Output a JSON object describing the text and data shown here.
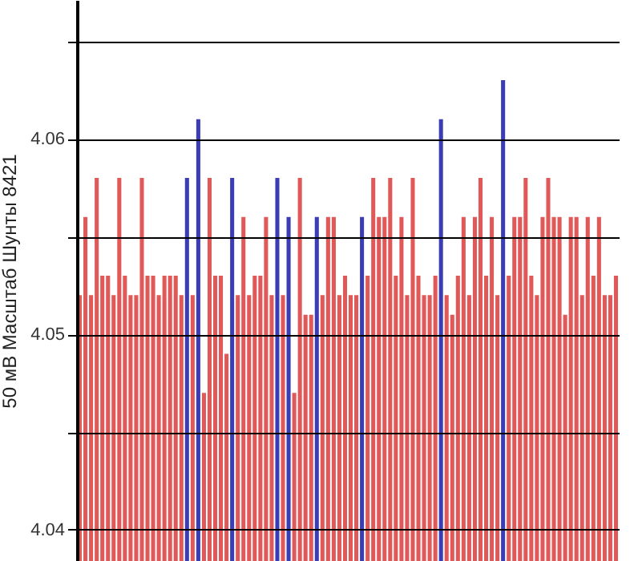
{
  "chart_data": {
    "type": "bar",
    "ylabel": "50 мВ Масштаб  Шунты 8421",
    "categories": [
      null,
      null,
      null,
      null,
      null,
      null,
      null,
      null,
      null,
      null,
      null,
      null,
      null,
      null,
      null,
      null,
      null,
      null,
      null,
      null,
      null,
      null,
      null,
      null,
      null,
      null,
      null,
      null,
      null,
      null,
      null,
      null,
      null,
      null,
      null,
      null,
      null,
      null,
      null,
      null,
      null,
      null,
      null,
      null,
      null,
      null,
      null,
      null,
      null,
      null,
      null,
      null,
      null,
      null,
      null,
      null,
      null,
      null,
      null,
      null,
      null,
      null,
      null,
      null,
      null,
      null,
      null,
      null,
      null,
      null,
      null,
      null,
      null,
      null,
      null,
      null,
      null,
      null,
      null,
      null,
      null,
      null,
      null,
      null,
      null,
      null,
      null,
      null,
      null,
      null,
      null,
      null,
      null,
      null,
      null,
      null
    ],
    "values": [
      4.052,
      4.056,
      4.052,
      4.058,
      4.053,
      4.053,
      4.052,
      4.058,
      4.053,
      4.052,
      4.052,
      4.058,
      4.053,
      4.053,
      4.052,
      4.053,
      4.053,
      4.053,
      4.052,
      4.058,
      4.052,
      4.061,
      4.047,
      4.058,
      4.053,
      4.053,
      4.049,
      4.058,
      4.052,
      4.056,
      4.052,
      4.053,
      4.053,
      4.056,
      4.052,
      4.058,
      4.052,
      4.056,
      4.047,
      4.058,
      4.051,
      4.051,
      4.056,
      4.052,
      4.056,
      4.056,
      4.052,
      4.053,
      4.052,
      4.052,
      4.056,
      4.053,
      4.058,
      4.056,
      4.056,
      4.058,
      4.053,
      4.056,
      4.052,
      4.058,
      4.053,
      4.052,
      4.052,
      4.053,
      4.061,
      4.052,
      4.051,
      4.053,
      4.056,
      4.052,
      4.056,
      4.058,
      4.053,
      4.056,
      4.052,
      4.063,
      4.053,
      4.056,
      4.056,
      4.058,
      4.053,
      4.052,
      4.056,
      4.058,
      4.056,
      4.056,
      4.051,
      4.056,
      4.056,
      4.052,
      4.056,
      4.053,
      4.056,
      4.052,
      4.052,
      4.053
    ],
    "colors": [
      "#e05858",
      "#e05858",
      "#e05858",
      "#e05858",
      "#e05858",
      "#e05858",
      "#e05858",
      "#e05858",
      "#e05858",
      "#e05858",
      "#e05858",
      "#e05858",
      "#e05858",
      "#e05858",
      "#e05858",
      "#e05858",
      "#e05858",
      "#e05858",
      "#e05858",
      "#3c3cb4",
      "#e05858",
      "#3c3cb4",
      "#e05858",
      "#e05858",
      "#e05858",
      "#e05858",
      "#e05858",
      "#3c3cb4",
      "#e05858",
      "#e05858",
      "#e05858",
      "#e05858",
      "#e05858",
      "#e05858",
      "#e05858",
      "#3c3cb4",
      "#e05858",
      "#3c3cb4",
      "#e05858",
      "#e05858",
      "#e05858",
      "#e05858",
      "#3c3cb4",
      "#e05858",
      "#e05858",
      "#e05858",
      "#e05858",
      "#e05858",
      "#e05858",
      "#e05858",
      "#3c3cb4",
      "#e05858",
      "#e05858",
      "#e05858",
      "#e05858",
      "#e05858",
      "#e05858",
      "#e05858",
      "#e05858",
      "#e05858",
      "#e05858",
      "#e05858",
      "#e05858",
      "#e05858",
      "#3c3cb4",
      "#e05858",
      "#e05858",
      "#e05858",
      "#e05858",
      "#e05858",
      "#e05858",
      "#e05858",
      "#e05858",
      "#e05858",
      "#e05858",
      "#3c3cb4",
      "#e05858",
      "#e05858",
      "#e05858",
      "#e05858",
      "#e05858",
      "#e05858",
      "#e05858",
      "#e05858",
      "#e05858",
      "#e05858",
      "#e05858",
      "#e05858",
      "#e05858",
      "#e05858",
      "#e05858",
      "#e05858",
      "#e05858",
      "#e05858",
      "#e05858",
      "#e05858"
    ],
    "ylim": [
      4.0384,
      4.0671
    ],
    "yticks": [
      4.04,
      {
        "value": 4.045,
        "label": null
      },
      4.05,
      {
        "value": 4.055,
        "label": null
      },
      4.06,
      {
        "value": 4.065,
        "label": null
      }
    ],
    "grid": "y",
    "tick_labels": "y"
  }
}
